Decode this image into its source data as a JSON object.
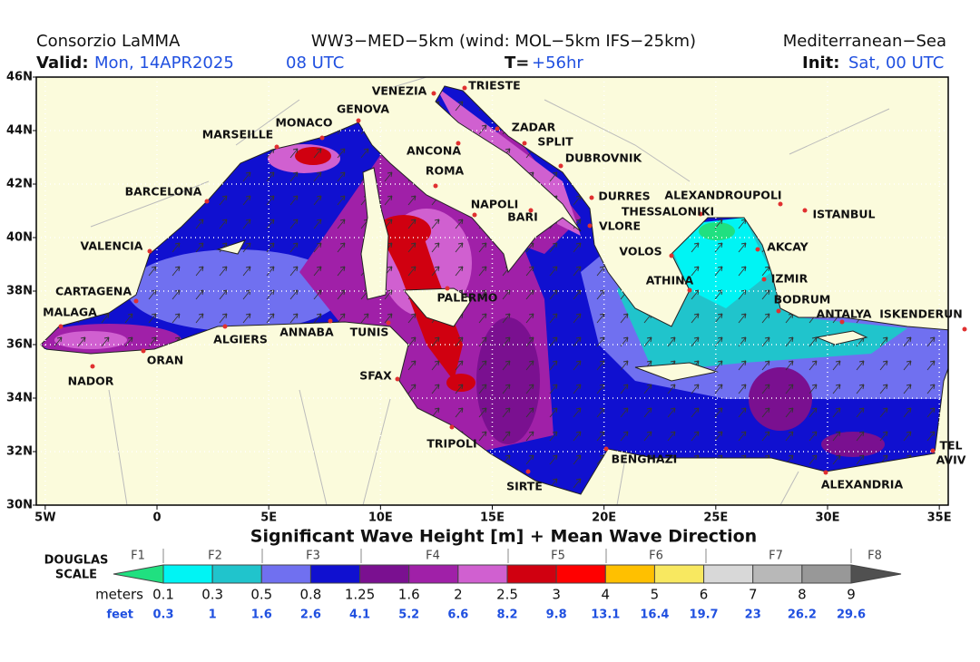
{
  "header": {
    "left": "Consorzio LaMMA",
    "center": "WW3−MED−5km (wind: MOL−5km IFS−25km)",
    "right": "Mediterranean−Sea",
    "valid_label": "Valid:",
    "valid_date": "Mon, 14APR2025",
    "valid_hour": "08 UTC",
    "t_label": "T=",
    "t_value": "+56hr",
    "init_label": "Init:",
    "init_value": "Sat, 00 UTC"
  },
  "map": {
    "title": "Significant Wave Height [m] + Mean Wave Direction",
    "xlim": [
      -5.4,
      35.4
    ],
    "ylim": [
      30,
      46
    ],
    "xticks": [
      {
        "value": -5,
        "label": "5W"
      },
      0,
      {
        "value": 5,
        "label": "5E"
      },
      {
        "value": 10,
        "label": "10E"
      },
      {
        "value": 15,
        "label": "15E"
      },
      {
        "value": 20,
        "label": "20E"
      },
      {
        "value": 25,
        "label": "25E"
      },
      {
        "value": 30,
        "label": "30E"
      },
      {
        "value": 35,
        "label": "35E"
      }
    ],
    "yticks": [
      {
        "value": 30,
        "label": "30N"
      },
      {
        "value": 32,
        "label": "32N"
      },
      {
        "value": 34,
        "label": "34N"
      },
      {
        "value": 36,
        "label": "36N"
      },
      {
        "value": 38,
        "label": "38N"
      },
      {
        "value": 40,
        "label": "40N"
      },
      {
        "value": 42,
        "label": "42N"
      },
      {
        "value": 44,
        "label": "44N"
      },
      {
        "value": 46,
        "label": "46N"
      }
    ],
    "cities": [
      "VENEZIA",
      "TRIESTE",
      "GENOVA",
      "MONACO",
      "MARSEILLE",
      "ZADAR",
      "SPLIT",
      "ANCONA",
      "DUBROVNIK",
      "ROMA",
      "BARCELONA",
      "DURRES",
      "ALEXANDROUPOLI",
      "NAPOLI",
      "BARI",
      "THESSALONIKI",
      "ISTANBUL",
      "VLORE",
      "VALENCIA",
      "VOLOS",
      "AKCAY",
      "ATHINA",
      "IZMIR",
      "CARTAGENA",
      "PALERMO",
      "BODRUM",
      "MALAGA",
      "ANTALYA",
      "ISKENDERUN",
      "ALGIERS",
      "ANNABA",
      "TUNIS",
      "ORAN",
      "SFAX",
      "NADOR",
      "TRIPOLI",
      "BENGHAZI",
      [
        "TEL",
        "AVIV"
      ],
      "SIRTE",
      "ALEXANDRIA"
    ]
  },
  "legend": {
    "scale_label": [
      "DOUGLAS",
      "SCALE"
    ],
    "forces": [
      "F1",
      "F2",
      "F3",
      "F4",
      "F5",
      "F6",
      "F7",
      "F8"
    ],
    "meters_label": "meters",
    "levels": [
      0.1,
      0.3,
      0.5,
      0.8,
      1.25,
      1.6,
      2,
      2.5,
      3,
      4,
      5,
      6,
      7,
      8,
      9
    ],
    "feet_label": "feet",
    "feet": [
      0.3,
      1,
      1.6,
      2.6,
      4.1,
      5.2,
      6.6,
      8.2,
      9.8,
      13.1,
      16.4,
      19.7,
      23,
      26.2,
      29.6
    ],
    "colors": [
      "#20e080",
      "#00f4f4",
      "#20c4cc",
      "#7070f0",
      "#1010d0",
      "#7a1090",
      "#a020a8",
      "#d060d0",
      "#d00010",
      "#ff0000",
      "#ffc000",
      "#f8e860",
      "#d8d8d8",
      "#b8b8b8",
      "#989898",
      "#505050"
    ]
  }
}
